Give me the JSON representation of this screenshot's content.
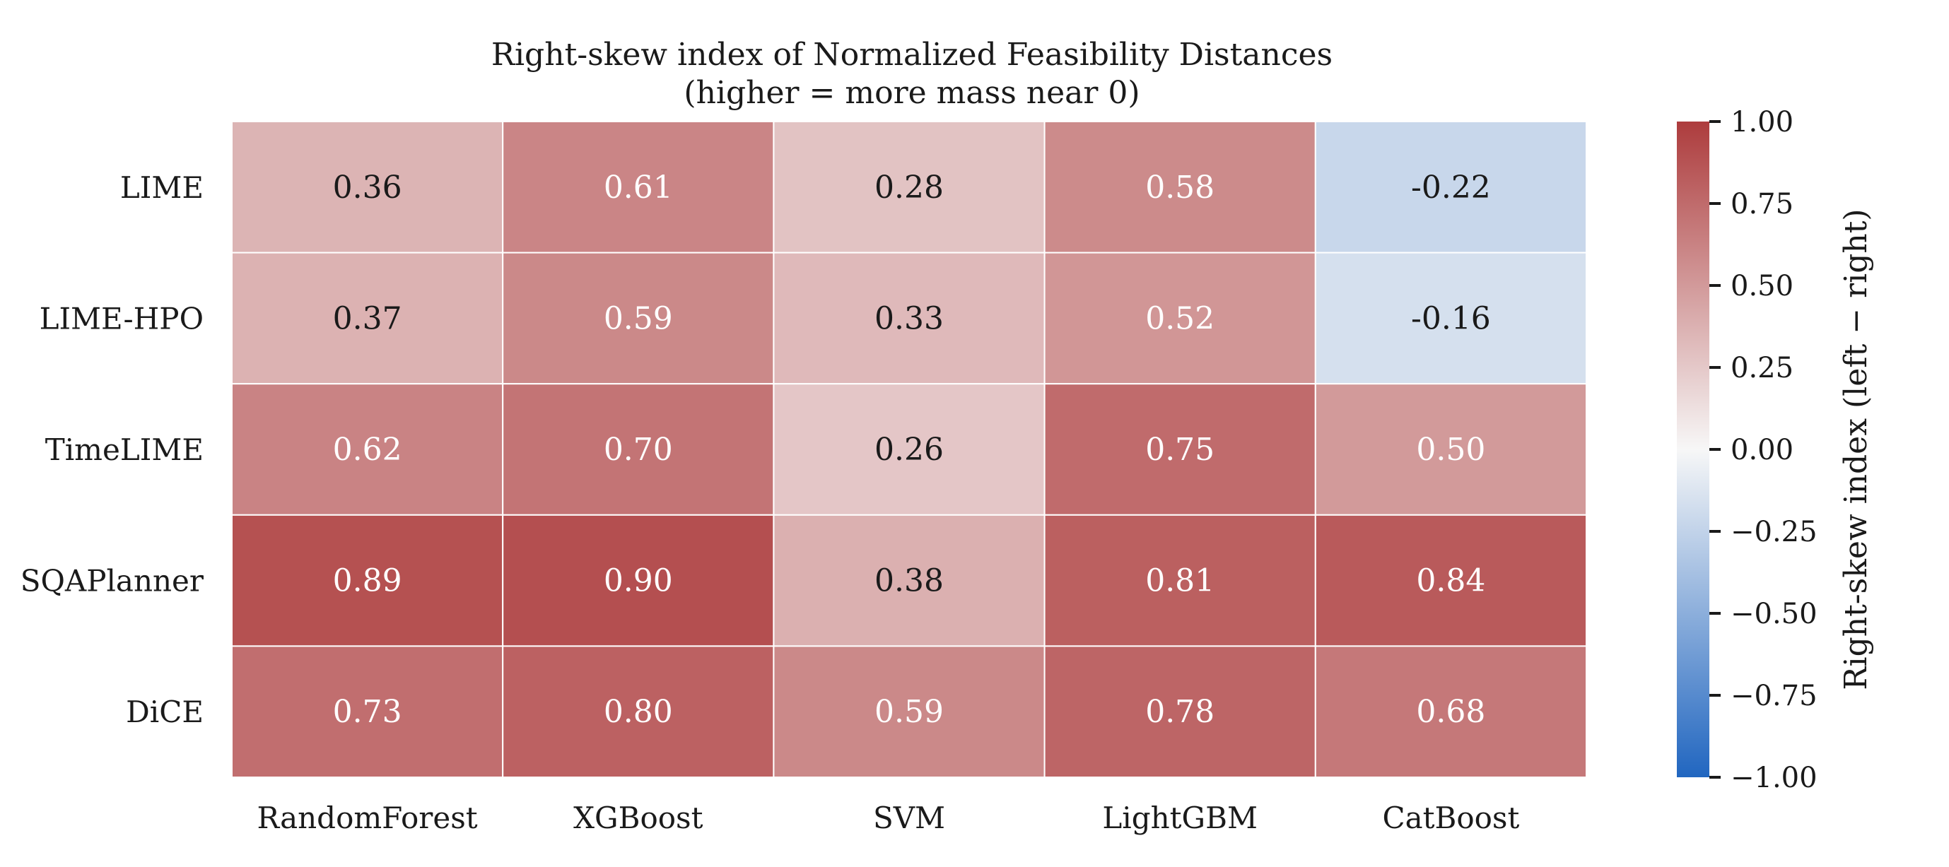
{
  "chart_data": {
    "type": "heatmap",
    "title_lines": [
      "Right-skew index of Normalized Feasibility Distances",
      "(higher = more mass near 0)"
    ],
    "rows": [
      "LIME",
      "LIME-HPO",
      "TimeLIME",
      "SQAPlanner",
      "DiCE"
    ],
    "columns": [
      "RandomForest",
      "XGBoost",
      "SVM",
      "LightGBM",
      "CatBoost"
    ],
    "values": [
      [
        0.36,
        0.61,
        0.28,
        0.58,
        -0.22
      ],
      [
        0.37,
        0.59,
        0.33,
        0.52,
        -0.16
      ],
      [
        0.62,
        0.7,
        0.26,
        0.75,
        0.5
      ],
      [
        0.89,
        0.9,
        0.38,
        0.81,
        0.84
      ],
      [
        0.73,
        0.8,
        0.59,
        0.78,
        0.68
      ]
    ],
    "cell_labels": [
      [
        "0.36",
        "0.61",
        "0.28",
        "0.58",
        "-0.22"
      ],
      [
        "0.37",
        "0.59",
        "0.33",
        "0.52",
        "-0.16"
      ],
      [
        "0.62",
        "0.70",
        "0.26",
        "0.75",
        "0.50"
      ],
      [
        "0.89",
        "0.90",
        "0.38",
        "0.81",
        "0.84"
      ],
      [
        "0.73",
        "0.80",
        "0.59",
        "0.78",
        "0.68"
      ]
    ],
    "colorbar": {
      "label": "Right-skew index (left − right)",
      "vmin": -1.0,
      "vmax": 1.0,
      "ticks": [
        1.0,
        0.75,
        0.5,
        0.25,
        0.0,
        -0.25,
        -0.5,
        -0.75,
        -1.0
      ],
      "tick_labels": [
        "1.00",
        "0.75",
        "0.50",
        "0.25",
        "0.00",
        "−0.25",
        "−0.50",
        "−0.75",
        "−1.00"
      ],
      "colormap": "diverging blue-white-red",
      "colors": {
        "low": "#2166c0",
        "mid": "#f7f7f7",
        "high": "#ad3c3d"
      }
    },
    "grid_line_color": "#ffffff"
  }
}
